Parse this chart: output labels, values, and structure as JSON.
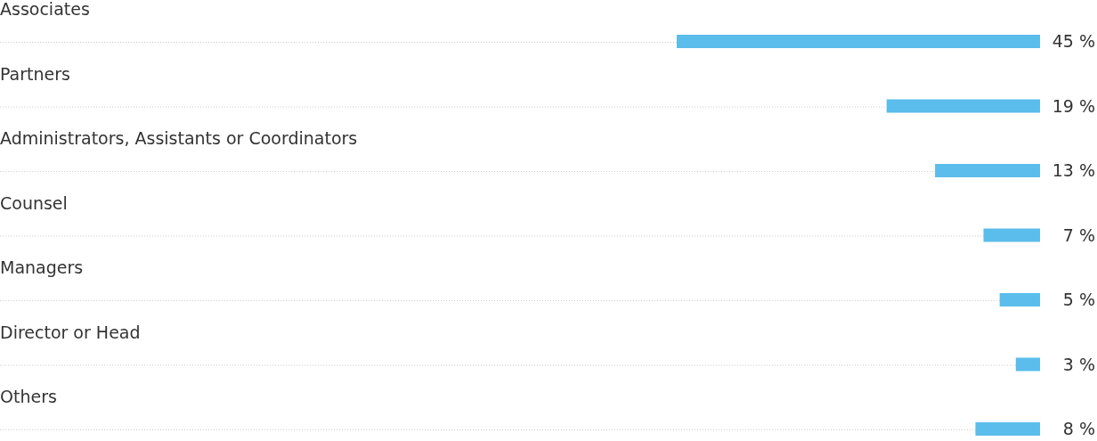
{
  "chart_data": {
    "type": "bar",
    "orientation": "horizontal",
    "categories": [
      "Associates",
      "Partners",
      "Administrators, Assistants or Coordinators",
      "Counsel",
      "Managers",
      "Director or Head",
      "Others"
    ],
    "values": [
      45,
      19,
      13,
      7,
      5,
      3,
      8
    ],
    "value_labels": [
      "45 %",
      "19 %",
      "13 %",
      "7 %",
      "5 %",
      "3 %",
      "8 %"
    ],
    "color": "#5bbdeb"
  }
}
